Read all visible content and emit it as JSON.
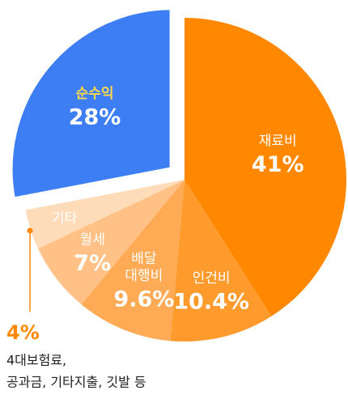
{
  "chart_data": {
    "type": "pie",
    "categories": [
      "재료비",
      "인건비",
      "배달\n대행비",
      "월세",
      "기타",
      "순수익"
    ],
    "values": [
      41,
      10.4,
      9.6,
      7,
      4,
      28
    ],
    "value_labels": [
      "41%",
      "10.4%",
      "9.6%",
      "7%",
      "4%",
      "28%"
    ],
    "colors": [
      "#ff8800",
      "#ff9a2c",
      "#ffab55",
      "#ffc185",
      "#ffdcb9",
      "#3d7ef5"
    ],
    "annotation": [
      "4대보험료,",
      "공과금, 기타지출, 깃발 등"
    ]
  }
}
